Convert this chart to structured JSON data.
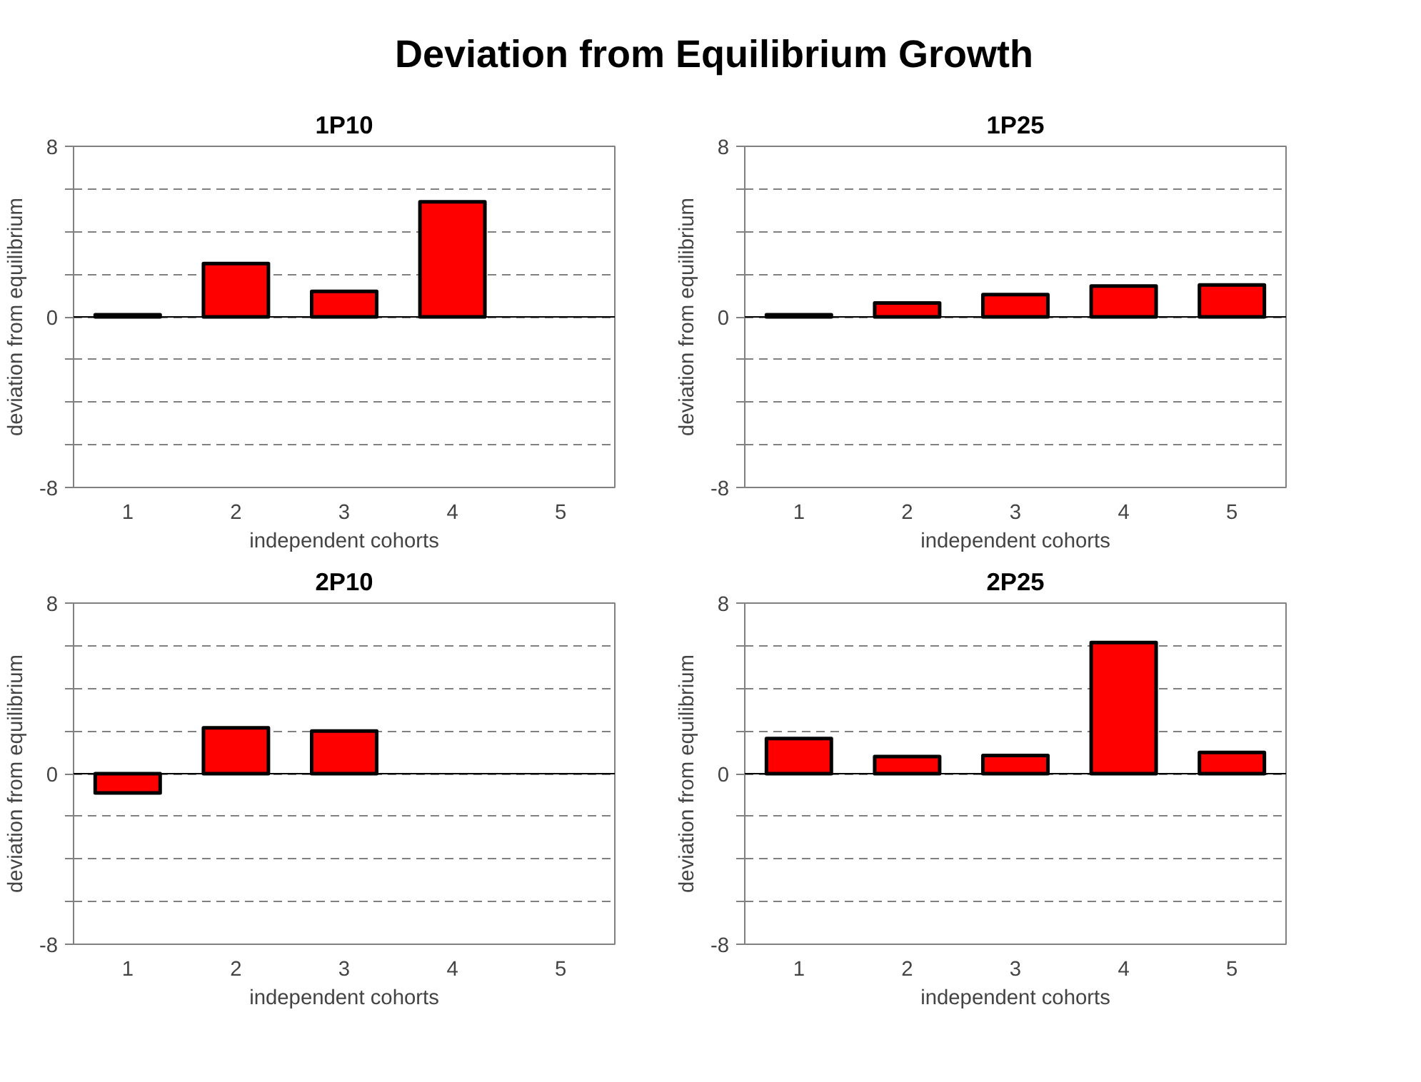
{
  "chart_data": [
    {
      "type": "other",
      "title": "Deviation from Equilibrium Growth"
    },
    {
      "type": "bar",
      "title": "1P10",
      "xlabel": "independent cohorts",
      "ylabel": "deviation from equilibrium",
      "categories": [
        "1",
        "2",
        "3",
        "4",
        "5"
      ],
      "color": "#ff0000",
      "values": [
        0.1,
        2.5,
        1.2,
        5.4,
        null
      ],
      "ylim": [
        -8,
        8
      ],
      "yticks": [
        -8,
        {
          "value": -6,
          "label": null
        },
        {
          "value": -4,
          "label": null
        },
        {
          "value": -2,
          "label": null
        },
        0,
        {
          "value": 2,
          "label": null
        },
        {
          "value": 4,
          "label": null
        },
        {
          "value": 6,
          "label": null
        },
        8
      ],
      "grid": "y",
      "ref_lines": [
        {
          "axis": "y",
          "value": 0
        }
      ]
    },
    {
      "type": "bar",
      "title": "1P25",
      "xlabel": "independent cohorts",
      "ylabel": "deviation from equilibrium",
      "categories": [
        "1",
        "2",
        "3",
        "4",
        "5"
      ],
      "color": "#ff0000",
      "values": [
        0.1,
        0.65,
        1.05,
        1.45,
        1.5
      ],
      "ylim": [
        -8,
        8
      ],
      "yticks": [
        -8,
        {
          "value": -6,
          "label": null
        },
        {
          "value": -4,
          "label": null
        },
        {
          "value": -2,
          "label": null
        },
        0,
        {
          "value": 2,
          "label": null
        },
        {
          "value": 4,
          "label": null
        },
        {
          "value": 6,
          "label": null
        },
        8
      ],
      "grid": "y",
      "ref_lines": [
        {
          "axis": "y",
          "value": 0
        }
      ]
    },
    {
      "type": "bar",
      "title": "2P10",
      "xlabel": "independent cohorts",
      "ylabel": "deviation from equilibrium",
      "categories": [
        "1",
        "2",
        "3",
        "4",
        "5"
      ],
      "color": "#ff0000",
      "values": [
        -0.9,
        2.15,
        2.0,
        null,
        null
      ],
      "ylim": [
        -8,
        8
      ],
      "yticks": [
        -8,
        {
          "value": -6,
          "label": null
        },
        {
          "value": -4,
          "label": null
        },
        {
          "value": -2,
          "label": null
        },
        0,
        {
          "value": 2,
          "label": null
        },
        {
          "value": 4,
          "label": null
        },
        {
          "value": 6,
          "label": null
        },
        8
      ],
      "grid": "y",
      "ref_lines": [
        {
          "axis": "y",
          "value": 0
        }
      ]
    },
    {
      "type": "bar",
      "title": "2P25",
      "xlabel": "independent cohorts",
      "ylabel": "deviation from equilibrium",
      "categories": [
        "1",
        "2",
        "3",
        "4",
        "5"
      ],
      "color": "#ff0000",
      "values": [
        1.65,
        0.8,
        0.85,
        6.15,
        1.0
      ],
      "ylim": [
        -8,
        8
      ],
      "yticks": [
        -8,
        {
          "value": -6,
          "label": null
        },
        {
          "value": -4,
          "label": null
        },
        {
          "value": -2,
          "label": null
        },
        0,
        {
          "value": 2,
          "label": null
        },
        {
          "value": 4,
          "label": null
        },
        {
          "value": 6,
          "label": null
        },
        8
      ],
      "grid": "y",
      "ref_lines": [
        {
          "axis": "y",
          "value": 0
        }
      ]
    }
  ]
}
